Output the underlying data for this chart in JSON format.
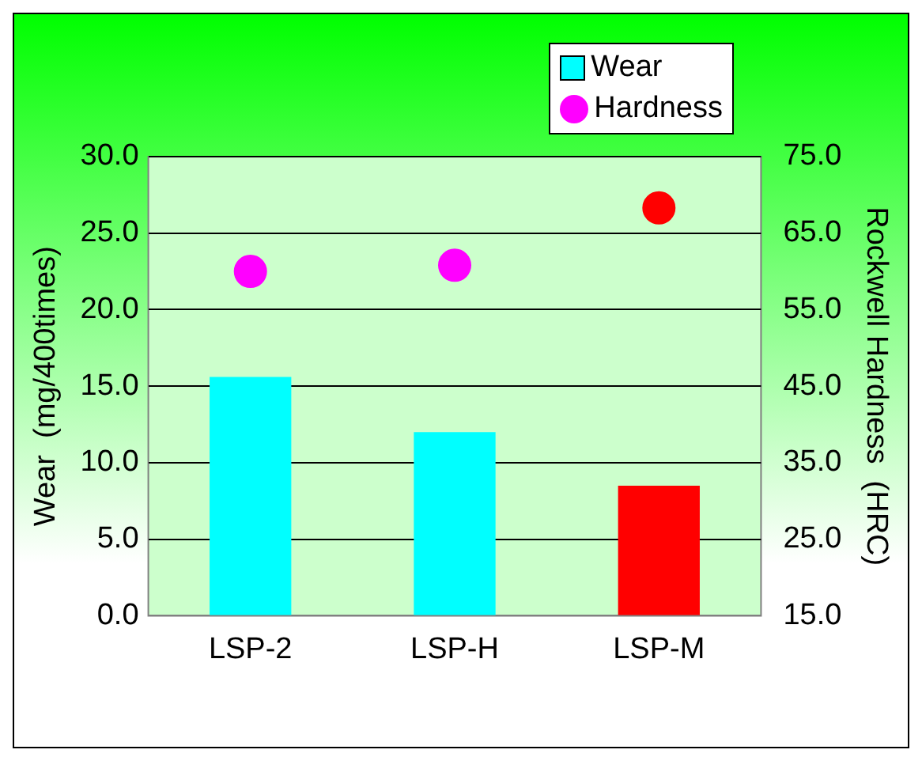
{
  "chart_data": {
    "type": "bar",
    "categories": [
      "LSP-2",
      "LSP-H",
      "LSP-M"
    ],
    "series": [
      {
        "name": "Wear",
        "type": "bar",
        "color": "#00ffff",
        "colors": [
          "#00ffff",
          "#00ffff",
          "#ff0000"
        ],
        "values": [
          15.6,
          12.0,
          8.5
        ]
      },
      {
        "name": "Hardness",
        "type": "scatter",
        "axis": "y2",
        "x": [
          "LSP-2",
          "LSP-H",
          "LSP-M"
        ],
        "color": "#ff00ff",
        "colors": [
          "#ff00ff",
          "#ff00ff",
          "#ff0000"
        ],
        "values": [
          60.0,
          60.8,
          68.3
        ]
      }
    ],
    "ylabel": "Wear  (mg/400times)",
    "y2label": "Rockwell Hardness  (HRC)",
    "ylim": [
      0,
      30
    ],
    "yticks": [
      {
        "value": 0,
        "label": "0.0"
      },
      {
        "value": 5,
        "label": "5.0"
      },
      {
        "value": 10,
        "label": "10.0"
      },
      {
        "value": 15,
        "label": "15.0"
      },
      {
        "value": 20,
        "label": "20.0"
      },
      {
        "value": 25,
        "label": "25.0"
      },
      {
        "value": 30,
        "label": "30.0"
      }
    ],
    "y2lim": [
      15,
      75
    ],
    "y2ticks": [
      {
        "value": 15,
        "label": "15.0"
      },
      {
        "value": 25,
        "label": "25.0"
      },
      {
        "value": 35,
        "label": "35.0"
      },
      {
        "value": 45,
        "label": "45.0"
      },
      {
        "value": 55,
        "label": "55.0"
      },
      {
        "value": 65,
        "label": "65.0"
      },
      {
        "value": 75,
        "label": "75.0"
      }
    ],
    "grid": "y",
    "legend": "top right",
    "marker": "circle"
  }
}
